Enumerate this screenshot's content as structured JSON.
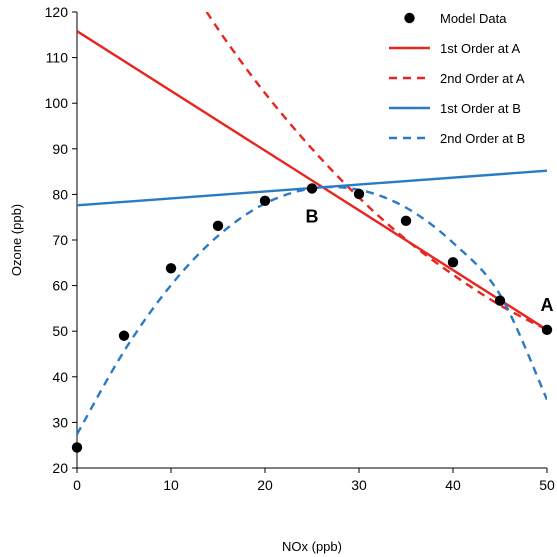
{
  "chart_data": {
    "type": "scatter",
    "xlabel": "NOx (ppb)",
    "ylabel": "Ozone (ppb)",
    "xlim": [
      0,
      50
    ],
    "ylim": [
      20,
      120
    ],
    "xticks": [
      "0",
      "10",
      "20",
      "30",
      "40",
      "50"
    ],
    "yticks": [
      "20",
      "30",
      "40",
      "50",
      "60",
      "70",
      "80",
      "90",
      "100",
      "110",
      "120"
    ],
    "grid": false,
    "legend_position": "top-right",
    "colors": {
      "red": "#e8251f",
      "blue": "#2b7bc4",
      "marker": "#000000"
    },
    "series": [
      {
        "name": "Model Data",
        "style": "marker",
        "x": [
          0,
          5,
          10,
          15,
          20,
          25,
          30,
          35,
          40,
          45,
          50
        ],
        "y": [
          24.5,
          49,
          63.8,
          73.1,
          78.6,
          81.3,
          80.1,
          74.2,
          65.1,
          56.7,
          50.3
        ]
      },
      {
        "name": "1st Order at A",
        "style": "solid",
        "color": "#e8251f",
        "x": [
          0,
          50
        ],
        "y": [
          115.8,
          50.3
        ]
      },
      {
        "name": "2nd Order at A",
        "style": "dashed",
        "color": "#e8251f",
        "x": [
          13.8,
          16,
          20,
          25,
          30,
          35,
          40,
          45,
          50
        ],
        "y": [
          120,
          113.3,
          102.2,
          90,
          79.3,
          70.1,
          62.4,
          55.7,
          50.3
        ]
      },
      {
        "name": "1st Order at B",
        "style": "solid",
        "color": "#2b7bc4",
        "x": [
          0,
          50
        ],
        "y": [
          77.6,
          85.2
        ]
      },
      {
        "name": "2nd Order at B",
        "style": "dashed",
        "color": "#2b7bc4",
        "x": [
          0,
          5,
          10,
          15,
          20,
          25,
          30,
          35,
          40,
          45,
          50
        ],
        "y": [
          27.4,
          45.6,
          60.1,
          70.9,
          78,
          81.3,
          81,
          77.1,
          69.4,
          58,
          35
        ]
      }
    ],
    "annotations": [
      {
        "text": "A",
        "x": 50,
        "y": 50.3
      },
      {
        "text": "B",
        "x": 25,
        "y": 81.3
      }
    ]
  }
}
